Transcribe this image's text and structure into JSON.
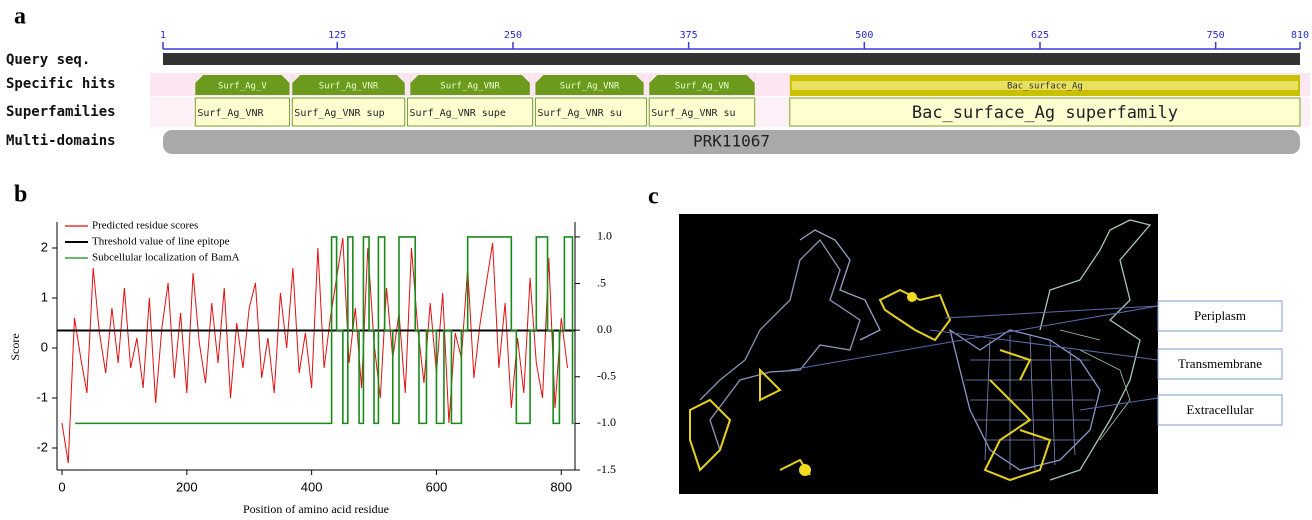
{
  "panel_a": {
    "label": "a",
    "ruler": {
      "lim": [
        1,
        810
      ],
      "ticks": [
        1,
        125,
        250,
        375,
        500,
        625,
        750,
        810
      ]
    },
    "rows": [
      "Query seq.",
      "Specific hits",
      "Superfamilies",
      "Multi-domains"
    ],
    "specific_hits": [
      {
        "name": "Surf_Ag_V",
        "start": 24,
        "end": 91
      },
      {
        "name": "Surf_Ag_VNR",
        "start": 93,
        "end": 173
      },
      {
        "name": "Surf_Ag_VNR",
        "start": 177,
        "end": 262
      },
      {
        "name": "Surf_Ag_VNR",
        "start": 266,
        "end": 343
      },
      {
        "name": "Surf_Ag_VN",
        "start": 347,
        "end": 422
      },
      {
        "name": "Bac_surface_Ag",
        "start": 447,
        "end": 810
      }
    ],
    "superfamilies": [
      {
        "name": "Surf_Ag_VNR",
        "start": 24,
        "end": 91
      },
      {
        "name": "Surf_Ag_VNR sup",
        "start": 93,
        "end": 173
      },
      {
        "name": "Surf_Ag_VNR supe",
        "start": 175,
        "end": 264
      },
      {
        "name": "Surf_Ag_VNR su",
        "start": 266,
        "end": 345
      },
      {
        "name": "Surf_Ag_VNR su",
        "start": 347,
        "end": 422
      },
      {
        "name": "Bac_surface_Ag superfamily",
        "start": 447,
        "end": 810
      }
    ],
    "multi_domains": [
      {
        "name": "PRK11067",
        "start": 1,
        "end": 810
      }
    ]
  },
  "chart_data": {
    "type": "line",
    "label": "b",
    "x_label": "Position of amino acid residue",
    "y_label": "Score",
    "xlim": [
      -8,
      822
    ],
    "xticks": [
      0,
      200,
      400,
      600,
      800
    ],
    "ylim": [
      -2.44,
      2.52
    ],
    "yticks": [
      -2,
      -1,
      0,
      1,
      2
    ],
    "y2lim": [
      -1.5,
      1.16
    ],
    "y2ticks": [
      {
        "value": -1.5,
        "label": "-1.5"
      },
      {
        "value": -1,
        "label": "-1.0"
      },
      {
        "value": -0.5,
        "label": "-0.5"
      },
      {
        "value": 0,
        "label": "0.0"
      },
      {
        "value": 0.5,
        "label": ".5"
      },
      {
        "value": 1,
        "label": "1.0"
      }
    ],
    "series": [
      {
        "name": "Predicted residue scores",
        "color": "#e01010",
        "x": [
          0,
          10,
          20,
          30,
          40,
          50,
          60,
          70,
          80,
          90,
          100,
          110,
          120,
          130,
          140,
          150,
          160,
          170,
          180,
          190,
          200,
          210,
          220,
          230,
          240,
          250,
          260,
          270,
          280,
          290,
          300,
          310,
          320,
          330,
          340,
          350,
          360,
          370,
          380,
          390,
          400,
          410,
          420,
          430,
          440,
          450,
          460,
          470,
          480,
          490,
          500,
          510,
          520,
          530,
          540,
          550,
          560,
          570,
          580,
          590,
          600,
          610,
          620,
          630,
          640,
          650,
          660,
          670,
          680,
          690,
          700,
          710,
          720,
          730,
          740,
          750,
          760,
          770,
          780,
          790,
          800,
          810
        ],
        "values": [
          -1.5,
          -2.3,
          0.6,
          -0.2,
          -0.9,
          1.6,
          0.3,
          -0.5,
          0.8,
          -0.3,
          1.2,
          -0.4,
          0.2,
          -0.8,
          1.0,
          -1.1,
          0.4,
          1.3,
          -0.6,
          0.7,
          -0.9,
          1.5,
          0.1,
          -0.7,
          0.9,
          -0.3,
          1.2,
          -1.0,
          0.5,
          -0.4,
          0.8,
          1.3,
          -0.6,
          0.2,
          -0.9,
          1.1,
          0.0,
          1.6,
          -0.5,
          0.3,
          -0.8,
          2.0,
          -0.4,
          0.6,
          1.4,
          2.2,
          -0.3,
          0.8,
          -0.8,
          2.0,
          0.1,
          -1.0,
          1.2,
          -0.2,
          0.7,
          -0.9,
          2.0,
          0.4,
          -0.7,
          0.9,
          -0.5,
          1.1,
          -1.5,
          0.3,
          -0.2,
          1.6,
          -0.6,
          0.5,
          1.3,
          2.1,
          -0.4,
          0.9,
          -1.2,
          0.2,
          -0.9,
          1.4,
          -0.3,
          -1.0,
          1.8,
          -1.2,
          0.6,
          -0.4
        ]
      },
      {
        "name": "Threshold value of  line epitope",
        "color": "#000000",
        "value": 0.35
      },
      {
        "name": "Subcellular localization of BamA",
        "color": "#1a8a1a",
        "axis": "y2",
        "x": [
          21,
          432,
          432,
          440,
          440,
          450,
          450,
          458,
          458,
          466,
          466,
          476,
          476,
          483,
          483,
          492,
          492,
          500,
          500,
          507,
          507,
          517,
          517,
          530,
          530,
          540,
          540,
          566,
          566,
          572,
          572,
          584,
          584,
          600,
          600,
          612,
          612,
          624,
          624,
          640,
          640,
          650,
          650,
          720,
          720,
          728,
          728,
          750,
          750,
          760,
          760,
          778,
          778,
          787,
          787,
          797,
          797,
          805,
          805,
          818,
          818,
          820
        ],
        "values": [
          -1,
          -1,
          1,
          1,
          0,
          0,
          -1,
          -1,
          1,
          1,
          0,
          0,
          -1,
          -1,
          1,
          1,
          0,
          0,
          -1,
          -1,
          1,
          1,
          0,
          0,
          -1,
          -1,
          1,
          1,
          0,
          0,
          -1,
          -1,
          0,
          0,
          -1,
          -1,
          0,
          0,
          -1,
          -1,
          0,
          0,
          1,
          1,
          0,
          0,
          -1,
          -1,
          0,
          0,
          1,
          1,
          0,
          0,
          -1,
          -1,
          0,
          0,
          1,
          1,
          -1,
          -1
        ]
      }
    ]
  },
  "panel_c": {
    "label": "c",
    "labels": [
      "Periplasm",
      "Transmembrane",
      "Extracellular"
    ]
  }
}
